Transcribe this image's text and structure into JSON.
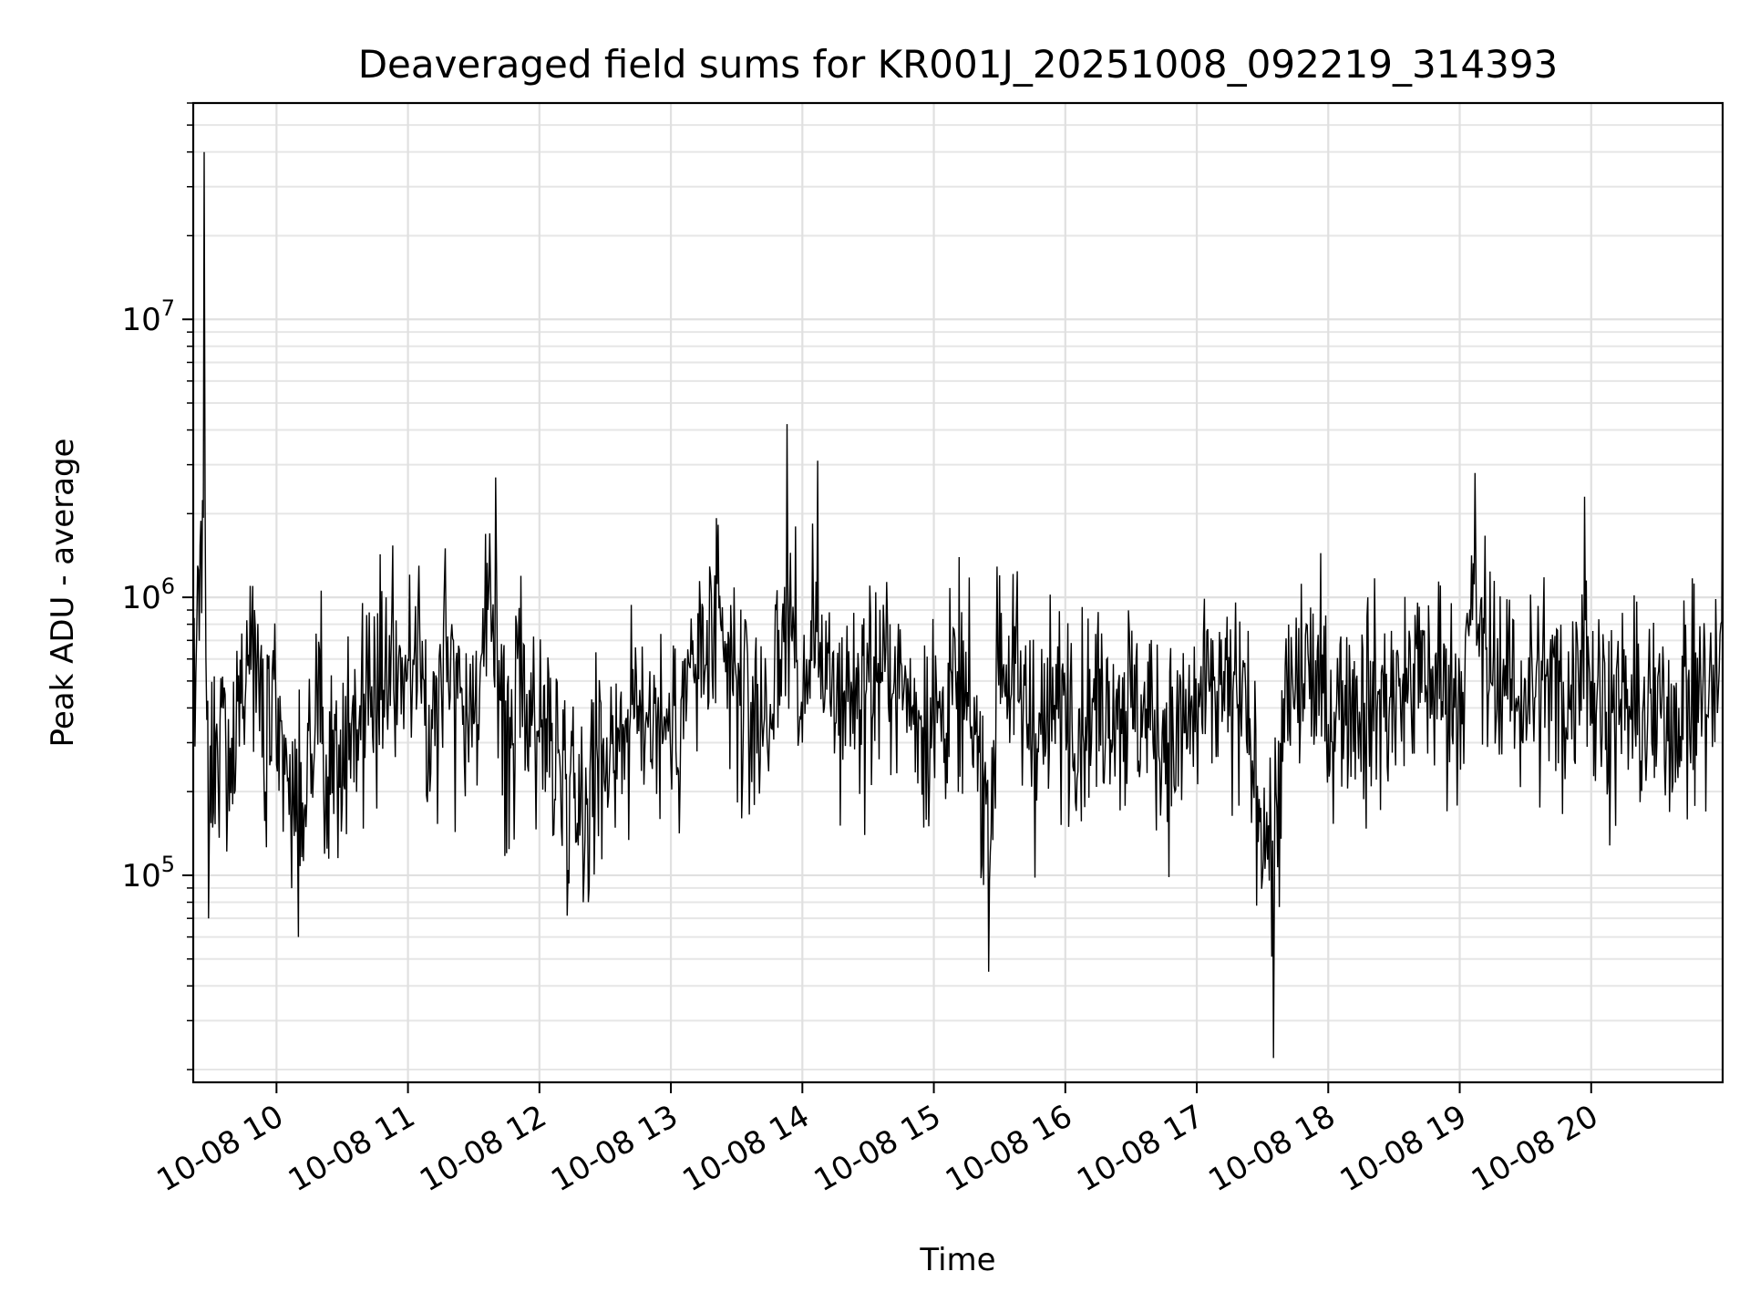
{
  "chart_data": {
    "type": "line",
    "title": "Deaveraged field sums for KR001J_20251008_092219_314393",
    "xlabel": "Time",
    "ylabel": "Peak ADU - average",
    "yscale": "log",
    "ylim": [
      18000,
      60000000
    ],
    "xlim": [
      "2025-10-08 09:22",
      "2025-10-08 21:00"
    ],
    "x_ticks": [
      "10-08 10",
      "10-08 11",
      "10-08 12",
      "10-08 13",
      "10-08 14",
      "10-08 15",
      "10-08 16",
      "10-08 17",
      "10-08 18",
      "10-08 19",
      "10-08 20"
    ],
    "y_ticks": [
      {
        "value": 100000,
        "base": "10",
        "exp": "5"
      },
      {
        "value": 1000000,
        "base": "10",
        "exp": "6"
      },
      {
        "value": 10000000,
        "base": "10",
        "exp": "7"
      }
    ],
    "grid": true,
    "line_color": "#000000",
    "series": [
      {
        "x": [
          "2025-10-08 09:22",
          "2025-10-08 09:24",
          "2025-10-08 09:27",
          "2025-10-08 09:29",
          "2025-10-08 09:35",
          "2025-10-08 09:40",
          "2025-10-08 09:48",
          "2025-10-08 09:55",
          "2025-10-08 10:00",
          "2025-10-08 10:10",
          "2025-10-08 10:20",
          "2025-10-08 10:30",
          "2025-10-08 10:40",
          "2025-10-08 10:50",
          "2025-10-08 11:00",
          "2025-10-08 11:05",
          "2025-10-08 11:10",
          "2025-10-08 11:17",
          "2025-10-08 11:20",
          "2025-10-08 11:30",
          "2025-10-08 11:40",
          "2025-10-08 11:45",
          "2025-10-08 11:50",
          "2025-10-08 12:00",
          "2025-10-08 12:10",
          "2025-10-08 12:20",
          "2025-10-08 12:30",
          "2025-10-08 12:40",
          "2025-10-08 12:50",
          "2025-10-08 13:00",
          "2025-10-08 13:10",
          "2025-10-08 13:20",
          "2025-10-08 13:30",
          "2025-10-08 13:40",
          "2025-10-08 13:50",
          "2025-10-08 13:53",
          "2025-10-08 14:00",
          "2025-10-08 14:07",
          "2025-10-08 14:10",
          "2025-10-08 14:20",
          "2025-10-08 14:30",
          "2025-10-08 14:40",
          "2025-10-08 14:50",
          "2025-10-08 15:00",
          "2025-10-08 15:10",
          "2025-10-08 15:20",
          "2025-10-08 15:25",
          "2025-10-08 15:30",
          "2025-10-08 15:40",
          "2025-10-08 15:50",
          "2025-10-08 16:00",
          "2025-10-08 16:10",
          "2025-10-08 16:20",
          "2025-10-08 16:30",
          "2025-10-08 16:40",
          "2025-10-08 16:50",
          "2025-10-08 17:00",
          "2025-10-08 17:10",
          "2025-10-08 17:20",
          "2025-10-08 17:35",
          "2025-10-08 17:40",
          "2025-10-08 17:50",
          "2025-10-08 18:00",
          "2025-10-08 18:10",
          "2025-10-08 18:20",
          "2025-10-08 18:30",
          "2025-10-08 18:40",
          "2025-10-08 18:50",
          "2025-10-08 19:00",
          "2025-10-08 19:03",
          "2025-10-08 19:07",
          "2025-10-08 19:10",
          "2025-10-08 19:20",
          "2025-10-08 19:30",
          "2025-10-08 19:40",
          "2025-10-08 19:50",
          "2025-10-08 19:57",
          "2025-10-08 20:00",
          "2025-10-08 20:10",
          "2025-10-08 20:20",
          "2025-10-08 20:30",
          "2025-10-08 20:40",
          "2025-10-08 20:50",
          "2025-10-08 20:58",
          "2025-10-08 21:00"
        ],
        "y": [
          300000,
          1300000,
          40000000,
          70000,
          400000,
          180000,
          1100000,
          200000,
          250000,
          60000,
          300000,
          180000,
          450000,
          1000000,
          600000,
          1300000,
          200000,
          1500000,
          800000,
          350000,
          2700000,
          120000,
          600000,
          300000,
          150000,
          80000,
          200000,
          300000,
          400000,
          250000,
          700000,
          1200000,
          500000,
          300000,
          600000,
          4200000,
          300000,
          3100000,
          400000,
          500000,
          600000,
          800000,
          400000,
          300000,
          500000,
          200000,
          45000,
          1200000,
          400000,
          250000,
          450000,
          350000,
          500000,
          400000,
          300000,
          200000,
          350000,
          500000,
          400000,
          22000,
          300000,
          800000,
          350000,
          500000,
          400000,
          450000,
          700000,
          600000,
          500000,
          800000,
          2800000,
          1000000,
          600000,
          500000,
          600000,
          400000,
          2300000,
          500000,
          400000,
          350000,
          300000,
          400000,
          500000,
          450000,
          6500000
        ]
      }
    ]
  }
}
